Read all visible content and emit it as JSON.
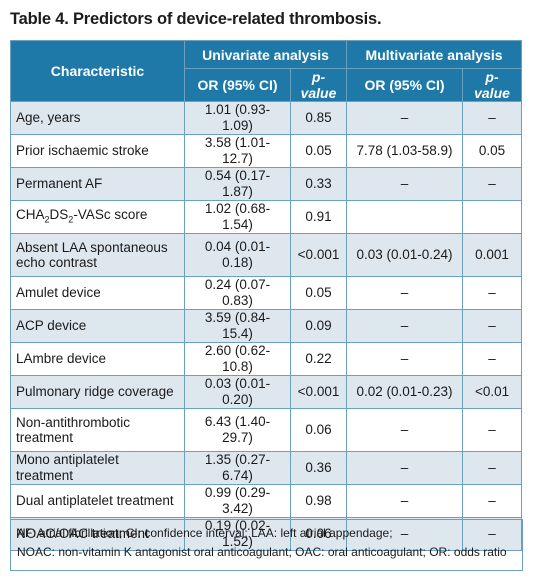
{
  "title": "Table 4. Predictors of device-related thrombosis.",
  "header": {
    "characteristic": "Characteristic",
    "univariate": "Univariate analysis",
    "multivariate": "Multivariate analysis",
    "or_ci": "OR (95% CI)",
    "p_value": "p-value"
  },
  "rows": [
    {
      "label": "Age, years",
      "uni_or": "1.01 (0.93-1.09)",
      "uni_p": "0.85",
      "multi_or": "–",
      "multi_p": "–"
    },
    {
      "label": "Prior ischaemic stroke",
      "uni_or": "3.58 (1.01-12.7)",
      "uni_p": "0.05",
      "multi_or": "7.78 (1.03-58.9)",
      "multi_p": "0.05"
    },
    {
      "label": "Permanent AF",
      "uni_or": "0.54 (0.17-1.87)",
      "uni_p": "0.33",
      "multi_or": "–",
      "multi_p": "–"
    },
    {
      "label_main": "CHA",
      "label_sub1": "2",
      "label_mid": "DS",
      "label_sub2": "2",
      "label_end": "-VASc score",
      "uni_or": "1.02 (0.68-1.54)",
      "uni_p": "0.91",
      "multi_or": "",
      "multi_p": ""
    },
    {
      "label_line1": "Absent LAA spontaneous",
      "label_line2": "echo contrast",
      "uni_or": "0.04 (0.01-0.18)",
      "uni_p": "<0.001",
      "multi_or": "0.03 (0.01-0.24)",
      "multi_p": "0.001"
    },
    {
      "label": "Amulet device",
      "uni_or": "0.24 (0.07-0.83)",
      "uni_p": "0.05",
      "multi_or": "–",
      "multi_p": "–"
    },
    {
      "label": "ACP device",
      "uni_or": "3.59 (0.84-15.4)",
      "uni_p": "0.09",
      "multi_or": "–",
      "multi_p": "–"
    },
    {
      "label": "LAmbre device",
      "uni_or": "2.60 (0.62-10.8)",
      "uni_p": "0.22",
      "multi_or": "–",
      "multi_p": "–"
    },
    {
      "label": "Pulmonary ridge coverage",
      "uni_or": "0.03 (0.01-0.20)",
      "uni_p": "<0.001",
      "multi_or": "0.02 (0.01-0.23)",
      "multi_p": "<0.01"
    },
    {
      "label_line1": "Non-antithrombotic",
      "label_line2": "treatment",
      "uni_or": "6.43 (1.40-29.7)",
      "uni_p": "0.06",
      "multi_or": "–",
      "multi_p": "–"
    },
    {
      "label": "Mono antiplatelet treatment",
      "uni_or": "1.35 (0.27-6.74)",
      "uni_p": "0.36",
      "multi_or": "–",
      "multi_p": "–"
    },
    {
      "label": "Dual antiplatelet treatment",
      "uni_or": "0.99 (0.29-3.42)",
      "uni_p": "0.98",
      "multi_or": "–",
      "multi_p": "–"
    },
    {
      "label": "NOAC/OAC treatment",
      "uni_or": "0.19 (0.02-1.52)",
      "uni_p": "0.06",
      "multi_or": "–",
      "multi_p": "–"
    }
  ],
  "footnote": {
    "line1": "AF: atrial fibrillation; CI: confidence interval; LAA: left atrial appendage;",
    "line2": "NOAC: non-vitamin K antagonist oral anticoagulant; OAC: oral anticoagulant; OR: odds ratio"
  },
  "colors": {
    "header_bg": "#1e79a8",
    "row_shade": "#dfe7ee",
    "border": "#6aa1be"
  }
}
